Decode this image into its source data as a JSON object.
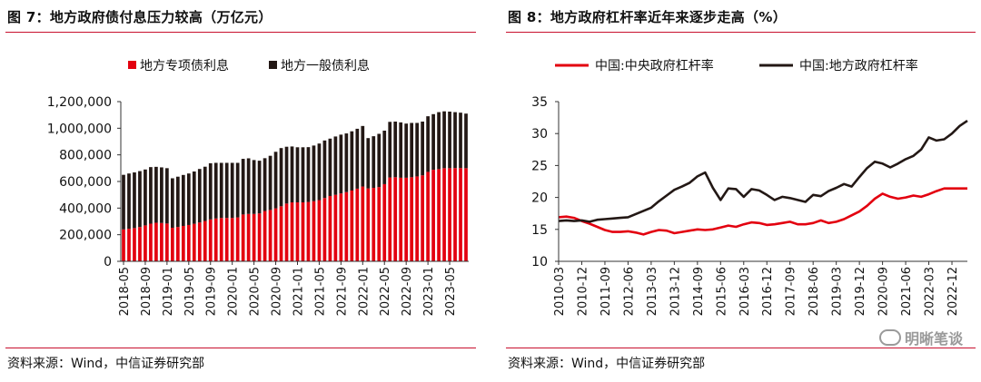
{
  "left": {
    "title": "图 7：地方政府债付息压力较高（万亿元）",
    "source": "资料来源：Wind，中信证券研究部"
  },
  "right": {
    "title": "图 8：地方政府杠杆率近年来逐步走高（%）",
    "source": "资料来源：Wind，中信证券研究部"
  },
  "watermark": "明晰笔谈",
  "chart_data": [
    {
      "type": "bar",
      "stacked": true,
      "title": "地方政府债付息压力较高（万亿元）",
      "legend_position": "top",
      "ylim": [
        0,
        1200000
      ],
      "yticks": [
        0,
        200000,
        400000,
        600000,
        800000,
        1000000,
        1200000
      ],
      "ytick_labels": [
        "0",
        "200,000",
        "400,000",
        "600,000",
        "800,000",
        "1,000,000",
        "1,200,000"
      ],
      "categories": [
        "2018-05",
        "2018-06",
        "2018-07",
        "2018-08",
        "2018-09",
        "2018-10",
        "2018-11",
        "2018-12",
        "2019-01",
        "2019-02",
        "2019-03",
        "2019-04",
        "2019-05",
        "2019-06",
        "2019-07",
        "2019-08",
        "2019-09",
        "2019-10",
        "2019-11",
        "2019-12",
        "2020-01",
        "2020-02",
        "2020-03",
        "2020-04",
        "2020-05",
        "2020-06",
        "2020-07",
        "2020-08",
        "2020-09",
        "2020-10",
        "2020-11",
        "2020-12",
        "2021-01",
        "2021-02",
        "2021-03",
        "2021-04",
        "2021-05",
        "2021-06",
        "2021-07",
        "2021-08",
        "2021-09",
        "2021-10",
        "2021-11",
        "2021-12",
        "2022-01",
        "2022-02",
        "2022-03",
        "2022-04",
        "2022-05",
        "2022-06",
        "2022-07",
        "2022-08",
        "2022-09",
        "2022-10",
        "2022-11",
        "2022-12",
        "2023-01",
        "2023-02",
        "2023-03",
        "2023-04",
        "2023-05",
        "2023-06",
        "2023-07",
        "2023-08"
      ],
      "xtick_labels": [
        "2018-05",
        "2018-09",
        "2019-01",
        "2019-05",
        "2019-09",
        "2020-01",
        "2020-05",
        "2020-09",
        "2021-01",
        "2021-05",
        "2021-09",
        "2022-01",
        "2022-05",
        "2022-09",
        "2023-01",
        "2023-05"
      ],
      "series": [
        {
          "name": "地方专项债利息",
          "color": "#e3000f",
          "values": [
            240000,
            245000,
            250000,
            258000,
            270000,
            283000,
            290000,
            288000,
            284000,
            252000,
            258000,
            266000,
            273000,
            282000,
            292000,
            303000,
            315000,
            322000,
            326000,
            326000,
            326000,
            330000,
            352000,
            356000,
            356000,
            360000,
            378000,
            386000,
            398000,
            414000,
            434000,
            443000,
            443000,
            443000,
            446000,
            452000,
            460000,
            476000,
            491000,
            500000,
            510000,
            520000,
            532000,
            546000,
            562000,
            548000,
            552000,
            558000,
            580000,
            630000,
            632000,
            628000,
            628000,
            632000,
            638000,
            646000,
            672000,
            688000,
            693000,
            700000,
            700000,
            701000,
            701000,
            700000
          ]
        },
        {
          "name": "地方一般债利息",
          "color": "#231815",
          "values": [
            410000,
            415000,
            418000,
            420000,
            420000,
            425000,
            420000,
            418000,
            416000,
            372000,
            378000,
            383000,
            387000,
            393000,
            402000,
            408000,
            422000,
            418000,
            414000,
            414000,
            414000,
            410000,
            418000,
            418000,
            405000,
            396000,
            397000,
            407000,
            425000,
            437000,
            427000,
            420000,
            414000,
            414000,
            412000,
            418000,
            425000,
            432000,
            431000,
            438000,
            442000,
            441000,
            445000,
            450000,
            455000,
            378000,
            388000,
            400000,
            402000,
            418000,
            418000,
            416000,
            407000,
            408000,
            402000,
            404000,
            418000,
            418000,
            428000,
            427000,
            425000,
            420000,
            416000,
            410000
          ]
        }
      ]
    },
    {
      "type": "line",
      "title": "地方政府杠杆率近年来逐步走高（%）",
      "legend_position": "top",
      "ylim": [
        10,
        35
      ],
      "yticks": [
        10,
        15,
        20,
        25,
        30,
        35
      ],
      "x": [
        "2010-03",
        "2010-06",
        "2010-09",
        "2010-12",
        "2011-03",
        "2011-06",
        "2011-09",
        "2011-12",
        "2012-03",
        "2012-06",
        "2012-09",
        "2012-12",
        "2013-03",
        "2013-06",
        "2013-09",
        "2013-12",
        "2014-03",
        "2014-06",
        "2014-09",
        "2014-12",
        "2015-03",
        "2015-06",
        "2015-09",
        "2015-12",
        "2016-03",
        "2016-06",
        "2016-09",
        "2016-12",
        "2017-03",
        "2017-06",
        "2017-09",
        "2017-12",
        "2018-03",
        "2018-06",
        "2018-09",
        "2018-12",
        "2019-03",
        "2019-06",
        "2019-09",
        "2019-12",
        "2020-03",
        "2020-06",
        "2020-09",
        "2020-12",
        "2021-03",
        "2021-06",
        "2021-09",
        "2021-12",
        "2022-03",
        "2022-06",
        "2022-09",
        "2022-12",
        "2023-03",
        "2023-06"
      ],
      "xtick_labels": [
        "2010-03",
        "2010-12",
        "2011-09",
        "2012-06",
        "2013-03",
        "2013-12",
        "2014-09",
        "2015-06",
        "2016-03",
        "2016-12",
        "2017-09",
        "2018-06",
        "2019-03",
        "2019-12",
        "2020-09",
        "2021-06",
        "2022-03",
        "2022-12"
      ],
      "series": [
        {
          "name": "中国:中央政府杠杆率",
          "color": "#e3000f",
          "values": [
            16.9,
            17.0,
            16.8,
            16.3,
            15.9,
            15.4,
            14.9,
            14.6,
            14.6,
            14.7,
            14.5,
            14.2,
            14.6,
            14.9,
            14.8,
            14.4,
            14.6,
            14.8,
            15.0,
            14.9,
            15.0,
            15.3,
            15.6,
            15.4,
            15.8,
            16.1,
            16.0,
            15.7,
            15.8,
            16.0,
            16.2,
            15.8,
            15.8,
            16.0,
            16.4,
            16.0,
            16.2,
            16.6,
            17.2,
            17.8,
            18.7,
            19.8,
            20.6,
            20.1,
            19.8,
            20.0,
            20.3,
            20.1,
            20.5,
            21.0,
            21.4,
            21.4,
            21.4,
            21.4
          ]
        },
        {
          "name": "中国:地方政府杠杆率",
          "color": "#231815",
          "values": [
            16.3,
            16.4,
            16.3,
            16.4,
            16.2,
            16.5,
            16.6,
            16.7,
            16.8,
            16.9,
            17.4,
            17.9,
            18.4,
            19.4,
            20.3,
            21.2,
            21.7,
            22.3,
            23.3,
            23.9,
            21.5,
            19.6,
            21.4,
            21.3,
            20.1,
            21.3,
            21.1,
            20.4,
            19.6,
            20.1,
            19.9,
            19.6,
            19.3,
            20.4,
            20.2,
            21.0,
            21.5,
            22.1,
            21.7,
            23.2,
            24.6,
            25.6,
            25.3,
            24.7,
            25.3,
            26.0,
            26.5,
            27.5,
            29.4,
            28.9,
            29.1,
            30.0,
            31.2,
            32.0
          ]
        }
      ]
    }
  ]
}
